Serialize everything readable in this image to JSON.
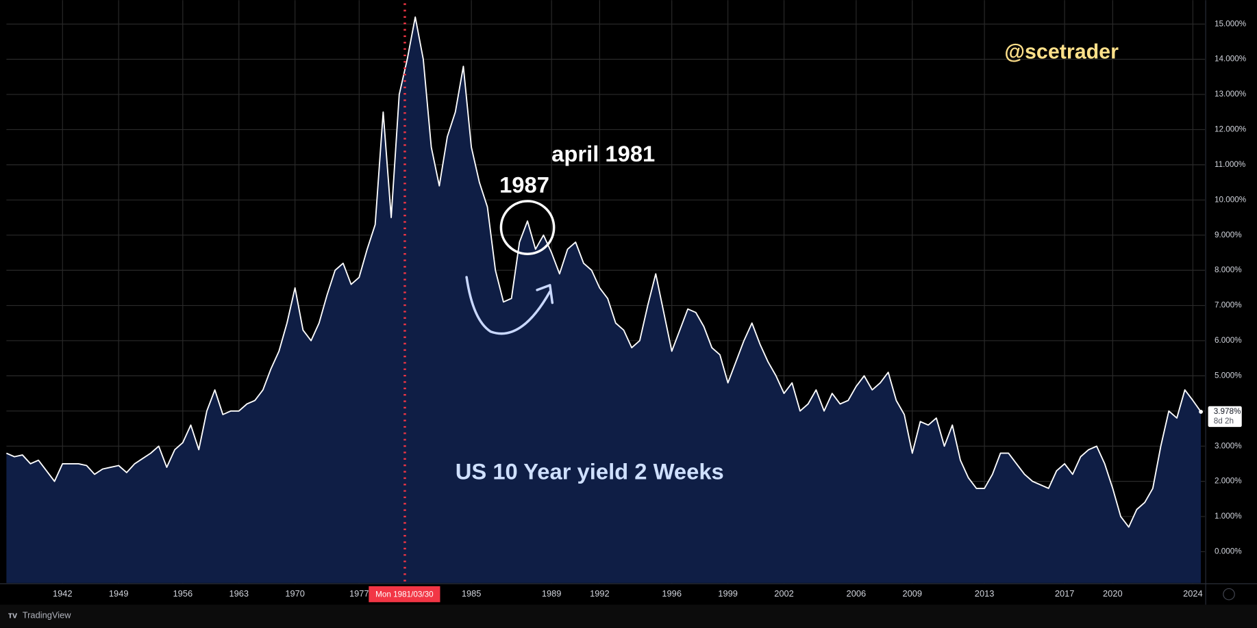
{
  "chart_data": {
    "type": "area",
    "title": "US 10 Year yield 2 Weeks",
    "watermark": "@scetrader",
    "annotations": [
      "april 1981",
      "1987"
    ],
    "crosshair_label": "Mon 1981/03/30",
    "last_price": {
      "value": 3.978,
      "label": "3.978%"
    },
    "countdown": "8d 2h",
    "categories": [
      null,
      null,
      null,
      null,
      null,
      null,
      null,
      "1942",
      null,
      null,
      null,
      null,
      null,
      null,
      "1949",
      null,
      null,
      null,
      null,
      null,
      null,
      null,
      "1956",
      null,
      null,
      null,
      null,
      null,
      null,
      "1963",
      null,
      null,
      null,
      null,
      null,
      null,
      "1970",
      null,
      null,
      null,
      null,
      null,
      null,
      null,
      "1977",
      null,
      null,
      null,
      null,
      null,
      null,
      null,
      null,
      null,
      null,
      null,
      null,
      null,
      "1985",
      null,
      null,
      null,
      null,
      null,
      null,
      null,
      null,
      null,
      "1989",
      null,
      null,
      null,
      null,
      null,
      "1992",
      null,
      null,
      null,
      null,
      null,
      null,
      null,
      null,
      "1996",
      null,
      null,
      null,
      null,
      null,
      null,
      "1999",
      null,
      null,
      null,
      null,
      null,
      null,
      "2002",
      null,
      null,
      null,
      null,
      null,
      null,
      null,
      null,
      "2006",
      null,
      null,
      null,
      null,
      null,
      null,
      "2009",
      null,
      null,
      null,
      null,
      null,
      null,
      null,
      null,
      "2013",
      null,
      null,
      null,
      null,
      null,
      null,
      null,
      null,
      null,
      "2017",
      null,
      null,
      null,
      null,
      null,
      "2020",
      null,
      null,
      null,
      null,
      null,
      null,
      null,
      null,
      null,
      "2024",
      null
    ],
    "series": [
      {
        "color": "#ffffff",
        "fill_color": "#0f1e45",
        "values": [
          2.8,
          2.7,
          2.75,
          2.5,
          2.6,
          2.3,
          2.0,
          2.5,
          2.5,
          2.5,
          2.45,
          2.2,
          2.35,
          2.4,
          2.45,
          2.25,
          2.5,
          2.65,
          2.8,
          3.0,
          2.4,
          2.9,
          3.1,
          3.6,
          2.9,
          4.0,
          4.6,
          3.9,
          4.0,
          4.0,
          4.2,
          4.3,
          4.6,
          5.2,
          5.7,
          6.5,
          7.5,
          6.3,
          6.0,
          6.5,
          7.3,
          8.0,
          8.2,
          7.6,
          7.8,
          8.6,
          9.3,
          12.5,
          9.5,
          13.0,
          14.0,
          15.2,
          14.0,
          11.5,
          10.4,
          11.8,
          12.5,
          13.8,
          11.5,
          10.5,
          9.8,
          8.0,
          7.1,
          7.2,
          8.8,
          9.4,
          8.6,
          9.0,
          8.5,
          7.9,
          8.6,
          8.8,
          8.2,
          8.0,
          7.5,
          7.2,
          6.5,
          6.3,
          5.8,
          6.0,
          7.0,
          7.9,
          6.8,
          5.7,
          6.3,
          6.9,
          6.8,
          6.4,
          5.8,
          5.6,
          4.8,
          5.4,
          6.0,
          6.5,
          5.9,
          5.4,
          5.0,
          4.5,
          4.8,
          4.0,
          4.2,
          4.6,
          4.0,
          4.5,
          4.2,
          4.3,
          4.7,
          5.0,
          4.6,
          4.8,
          5.1,
          4.3,
          3.9,
          2.8,
          3.7,
          3.6,
          3.8,
          3.0,
          3.6,
          2.6,
          2.1,
          1.8,
          1.8,
          2.2,
          2.8,
          2.8,
          2.5,
          2.2,
          2.0,
          1.9,
          1.8,
          2.3,
          2.5,
          2.2,
          2.7,
          2.9,
          3.0,
          2.5,
          1.8,
          1.0,
          0.7,
          1.2,
          1.4,
          1.8,
          3.0,
          4.0,
          3.8,
          4.6,
          4.3,
          3.978
        ]
      }
    ],
    "ylim": [
      -0.89,
      15.68
    ],
    "yticks": [
      {
        "value": 0,
        "label": "0.000%"
      },
      {
        "value": 1,
        "label": "1.000%"
      },
      {
        "value": 2,
        "label": "2.000%"
      },
      {
        "value": 3,
        "label": "3.000%"
      },
      {
        "value": 4,
        "label": "4.000%"
      },
      {
        "value": 5,
        "label": "5.000%"
      },
      {
        "value": 6,
        "label": "6.000%"
      },
      {
        "value": 7,
        "label": "7.000%"
      },
      {
        "value": 8,
        "label": "8.000%"
      },
      {
        "value": 9,
        "label": "9.000%"
      },
      {
        "value": 10,
        "label": "10.000%"
      },
      {
        "value": 11,
        "label": "11.000%"
      },
      {
        "value": 12,
        "label": "12.000%"
      },
      {
        "value": 13,
        "label": "13.000%"
      },
      {
        "value": 14,
        "label": "14.000%"
      },
      {
        "value": 15,
        "label": "15.000%"
      }
    ],
    "grid": true
  },
  "footer": {
    "brand": "TradingView"
  }
}
